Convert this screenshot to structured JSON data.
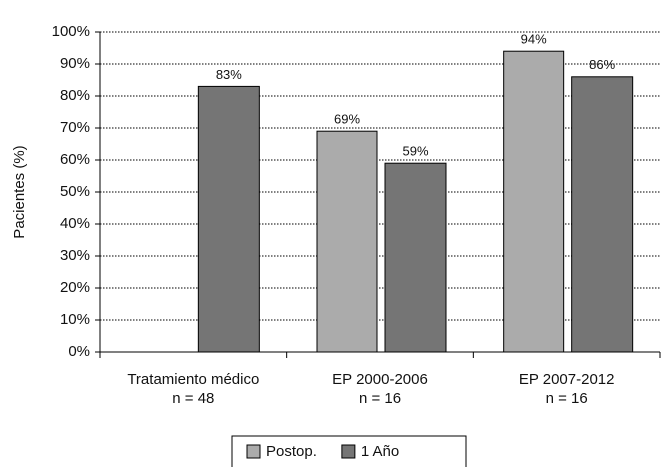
{
  "chart_data": {
    "type": "bar",
    "y_label": "Pacientes (%)",
    "categories": [
      [
        "Tratamiento médico",
        "n = 48"
      ],
      [
        "EP 2000-2006",
        "n = 16"
      ],
      [
        "EP 2007-2012",
        "n = 16"
      ]
    ],
    "series": [
      {
        "name": "Postop.",
        "color": "#ababab",
        "values": [
          null,
          69,
          94
        ],
        "value_labels": [
          null,
          "69%",
          "94%"
        ]
      },
      {
        "name": "1 Año",
        "color": "#757575",
        "values": [
          83,
          59,
          86
        ],
        "value_labels": [
          "83%",
          "59%",
          "86%"
        ]
      }
    ],
    "ylim": [
      0,
      100
    ],
    "yticks": [
      {
        "value": 0,
        "label": "0%"
      },
      {
        "value": 10,
        "label": "10%"
      },
      {
        "value": 20,
        "label": "20%"
      },
      {
        "value": 30,
        "label": "30%"
      },
      {
        "value": 40,
        "label": "40%"
      },
      {
        "value": 50,
        "label": "50%"
      },
      {
        "value": 60,
        "label": "60%"
      },
      {
        "value": 70,
        "label": "70%"
      },
      {
        "value": 80,
        "label": "80%"
      },
      {
        "value": 90,
        "label": "90%"
      },
      {
        "value": 100,
        "label": "100%"
      }
    ],
    "grid": true,
    "legend": "bottom"
  }
}
